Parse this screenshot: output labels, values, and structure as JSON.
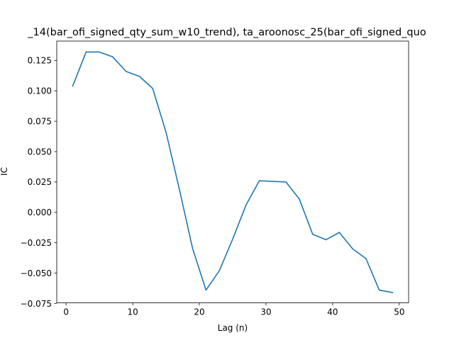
{
  "chart_data": {
    "type": "line",
    "title": "_14(bar_ofi_signed_qty_sum_w10_trend), ta_aroonosc_25(bar_ofi_signed_quo",
    "xlabel": "Lag (n)",
    "ylabel": "IC",
    "xlim": [
      -1.4,
      51.4
    ],
    "ylim": [
      -0.0745,
      0.141
    ],
    "xticks": [
      0,
      10,
      20,
      30,
      40,
      50
    ],
    "xtick_labels": [
      "0",
      "10",
      "20",
      "30",
      "40",
      "50"
    ],
    "yticks": [
      -0.075,
      -0.05,
      -0.025,
      0.0,
      0.025,
      0.05,
      0.075,
      0.1,
      0.125
    ],
    "ytick_labels": [
      "−0.075",
      "−0.050",
      "−0.025",
      "0.000",
      "0.025",
      "0.050",
      "0.075",
      "0.100",
      "0.125"
    ],
    "grid": false,
    "legend": false,
    "series": [
      {
        "color": "#1f77b4",
        "x": [
          1,
          3,
          5,
          7,
          9,
          11,
          13,
          15,
          17,
          19,
          21,
          23,
          25,
          27,
          29,
          31,
          33,
          35,
          37,
          39,
          41,
          43,
          45,
          47,
          49
        ],
        "y": [
          0.104,
          0.132,
          0.132,
          0.128,
          0.116,
          0.112,
          0.102,
          0.066,
          0.019,
          -0.03,
          -0.064,
          -0.048,
          -0.022,
          0.006,
          0.026,
          0.0255,
          0.025,
          0.011,
          -0.018,
          -0.0225,
          -0.0165,
          -0.03,
          -0.038,
          -0.064,
          -0.066
        ]
      }
    ]
  }
}
